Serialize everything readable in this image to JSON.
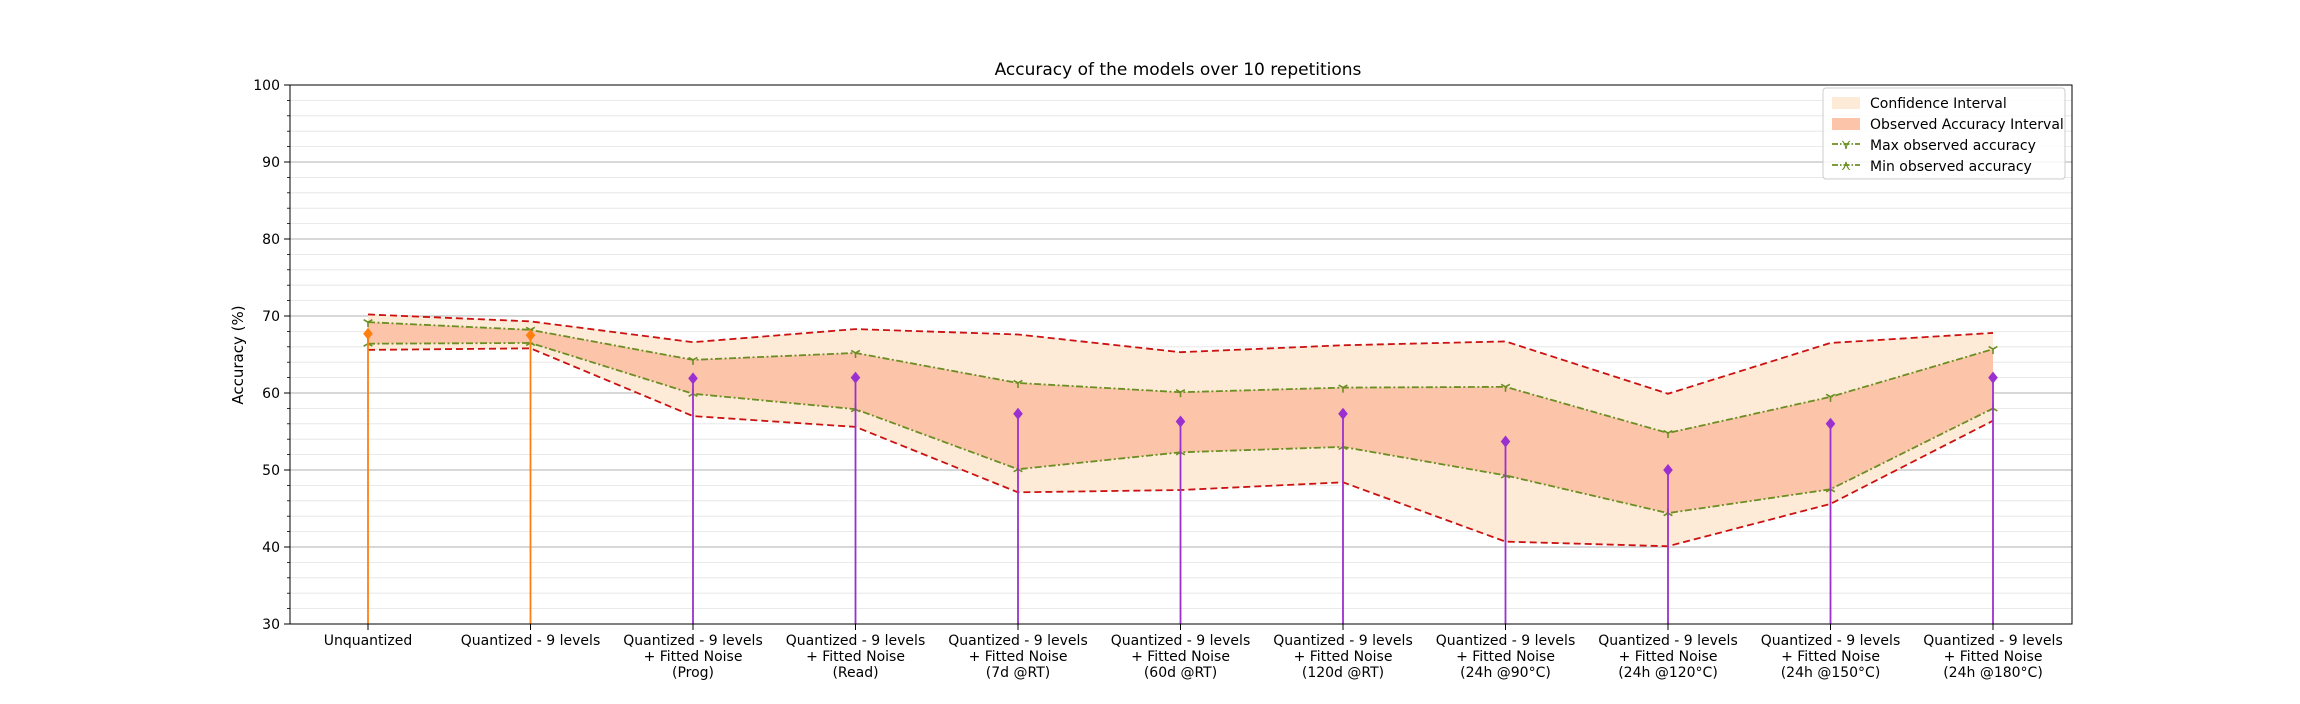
{
  "chart_data": {
    "type": "line",
    "title": "Accuracy of the models over 10 repetitions",
    "xlabel": "",
    "ylabel": "Accuracy (%)",
    "ylim": [
      30,
      100
    ],
    "yticks": [
      30,
      40,
      50,
      60,
      70,
      80,
      90,
      100
    ],
    "grid": "major and minor horizontal",
    "legend_placement": "top-right",
    "categories": [
      "Unquantized",
      "Quantized - 9 levels",
      "Quantized - 9 levels\n+ Fitted Noise\n(Prog)",
      "Quantized - 9 levels\n+ Fitted Noise\n(Read)",
      "Quantized - 9 levels\n+ Fitted Noise\n(7d @RT)",
      "Quantized - 9 levels\n+ Fitted Noise\n(60d @RT)",
      "Quantized - 9 levels\n+ Fitted Noise\n(120d @RT)",
      "Quantized - 9 levels\n+ Fitted Noise\n(24h @90°C)",
      "Quantized - 9 levels\n+ Fitted Noise\n(24h @120°C)",
      "Quantized - 9 levels\n+ Fitted Noise\n(24h @150°C)",
      "Quantized - 9 levels\n+ Fitted Noise\n(24h @180°C)"
    ],
    "series": [
      {
        "name": "Confidence Interval",
        "kind": "band",
        "upper": [
          70.2,
          69.3,
          66.6,
          68.3,
          67.6,
          65.3,
          66.2,
          66.7,
          59.9,
          66.5,
          67.8
        ],
        "lower": [
          65.6,
          65.8,
          57.0,
          55.6,
          47.1,
          47.4,
          48.4,
          40.7,
          40.1,
          45.6,
          56.4
        ]
      },
      {
        "name": "Observed Accuracy Interval",
        "kind": "band"
      },
      {
        "name": "Max observed accuracy",
        "kind": "line",
        "values": [
          69.2,
          68.2,
          64.3,
          65.2,
          61.3,
          60.1,
          60.7,
          60.8,
          54.8,
          59.5,
          65.7
        ]
      },
      {
        "name": "Min observed accuracy",
        "kind": "line",
        "values": [
          66.4,
          66.5,
          59.9,
          57.9,
          50.1,
          52.3,
          53.0,
          49.3,
          44.4,
          47.5,
          58.0
        ]
      },
      {
        "kind": "stem",
        "values": [
          67.7,
          67.5,
          61.9,
          62.0,
          57.3,
          56.3,
          57.3,
          53.7,
          50.0,
          56.0,
          62.0
        ]
      }
    ],
    "colors": {
      "stem_unquantized": "#ff7f0e",
      "stem_noise": "#9b30d0",
      "confidence_fill": "#fdebd7",
      "observed_fill": "#fcc5aa",
      "bound_line": "#cc1111",
      "max_min_line": "#6b8e23"
    }
  }
}
